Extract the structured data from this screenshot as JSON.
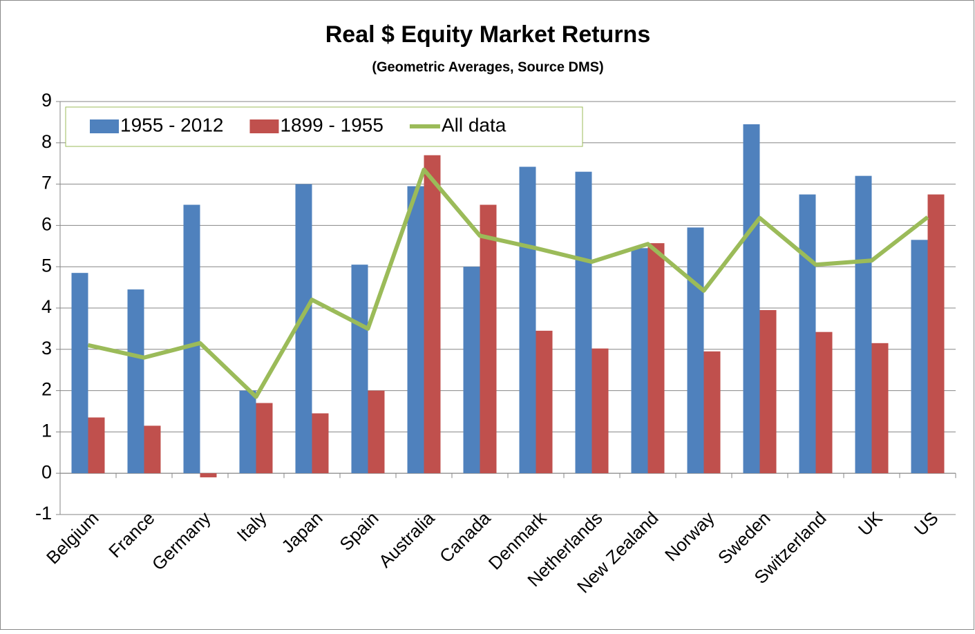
{
  "chart_data": {
    "type": "bar",
    "title": "Real $ Equity Market Returns",
    "subtitle": "(Geometric Averages, Source DMS)",
    "categories": [
      "Belgium",
      "France",
      "Germany",
      "Italy",
      "Japan",
      "Spain",
      "Australia",
      "Canada",
      "Denmark",
      "Netherlands",
      "New Zealand",
      "Norway",
      "Sweden",
      "Switzerland",
      "UK",
      "US"
    ],
    "series": [
      {
        "name": "1955 - 2012",
        "color": "#4f81bd",
        "values": [
          4.85,
          4.45,
          6.5,
          2.0,
          7.0,
          5.05,
          6.95,
          5.0,
          7.42,
          7.3,
          5.45,
          5.95,
          8.45,
          6.75,
          7.2,
          5.65
        ]
      },
      {
        "name": "1899 - 1955",
        "color": "#c0504d",
        "values": [
          1.35,
          1.15,
          -0.1,
          1.7,
          1.45,
          2.0,
          7.7,
          6.5,
          3.45,
          3.02,
          5.57,
          2.95,
          3.95,
          3.42,
          3.15,
          6.75
        ]
      },
      {
        "name": "All data",
        "color": "#9bbb59",
        "type": "line",
        "values": [
          3.1,
          2.8,
          3.15,
          1.85,
          4.2,
          3.5,
          7.35,
          5.75,
          5.45,
          5.12,
          5.55,
          4.42,
          6.18,
          5.05,
          5.15,
          6.2
        ]
      }
    ],
    "ylim": [
      -1,
      9
    ],
    "yticks": [
      -1,
      0,
      1,
      2,
      3,
      4,
      5,
      6,
      7,
      8,
      9
    ],
    "grid": true,
    "legend": "top-left"
  }
}
